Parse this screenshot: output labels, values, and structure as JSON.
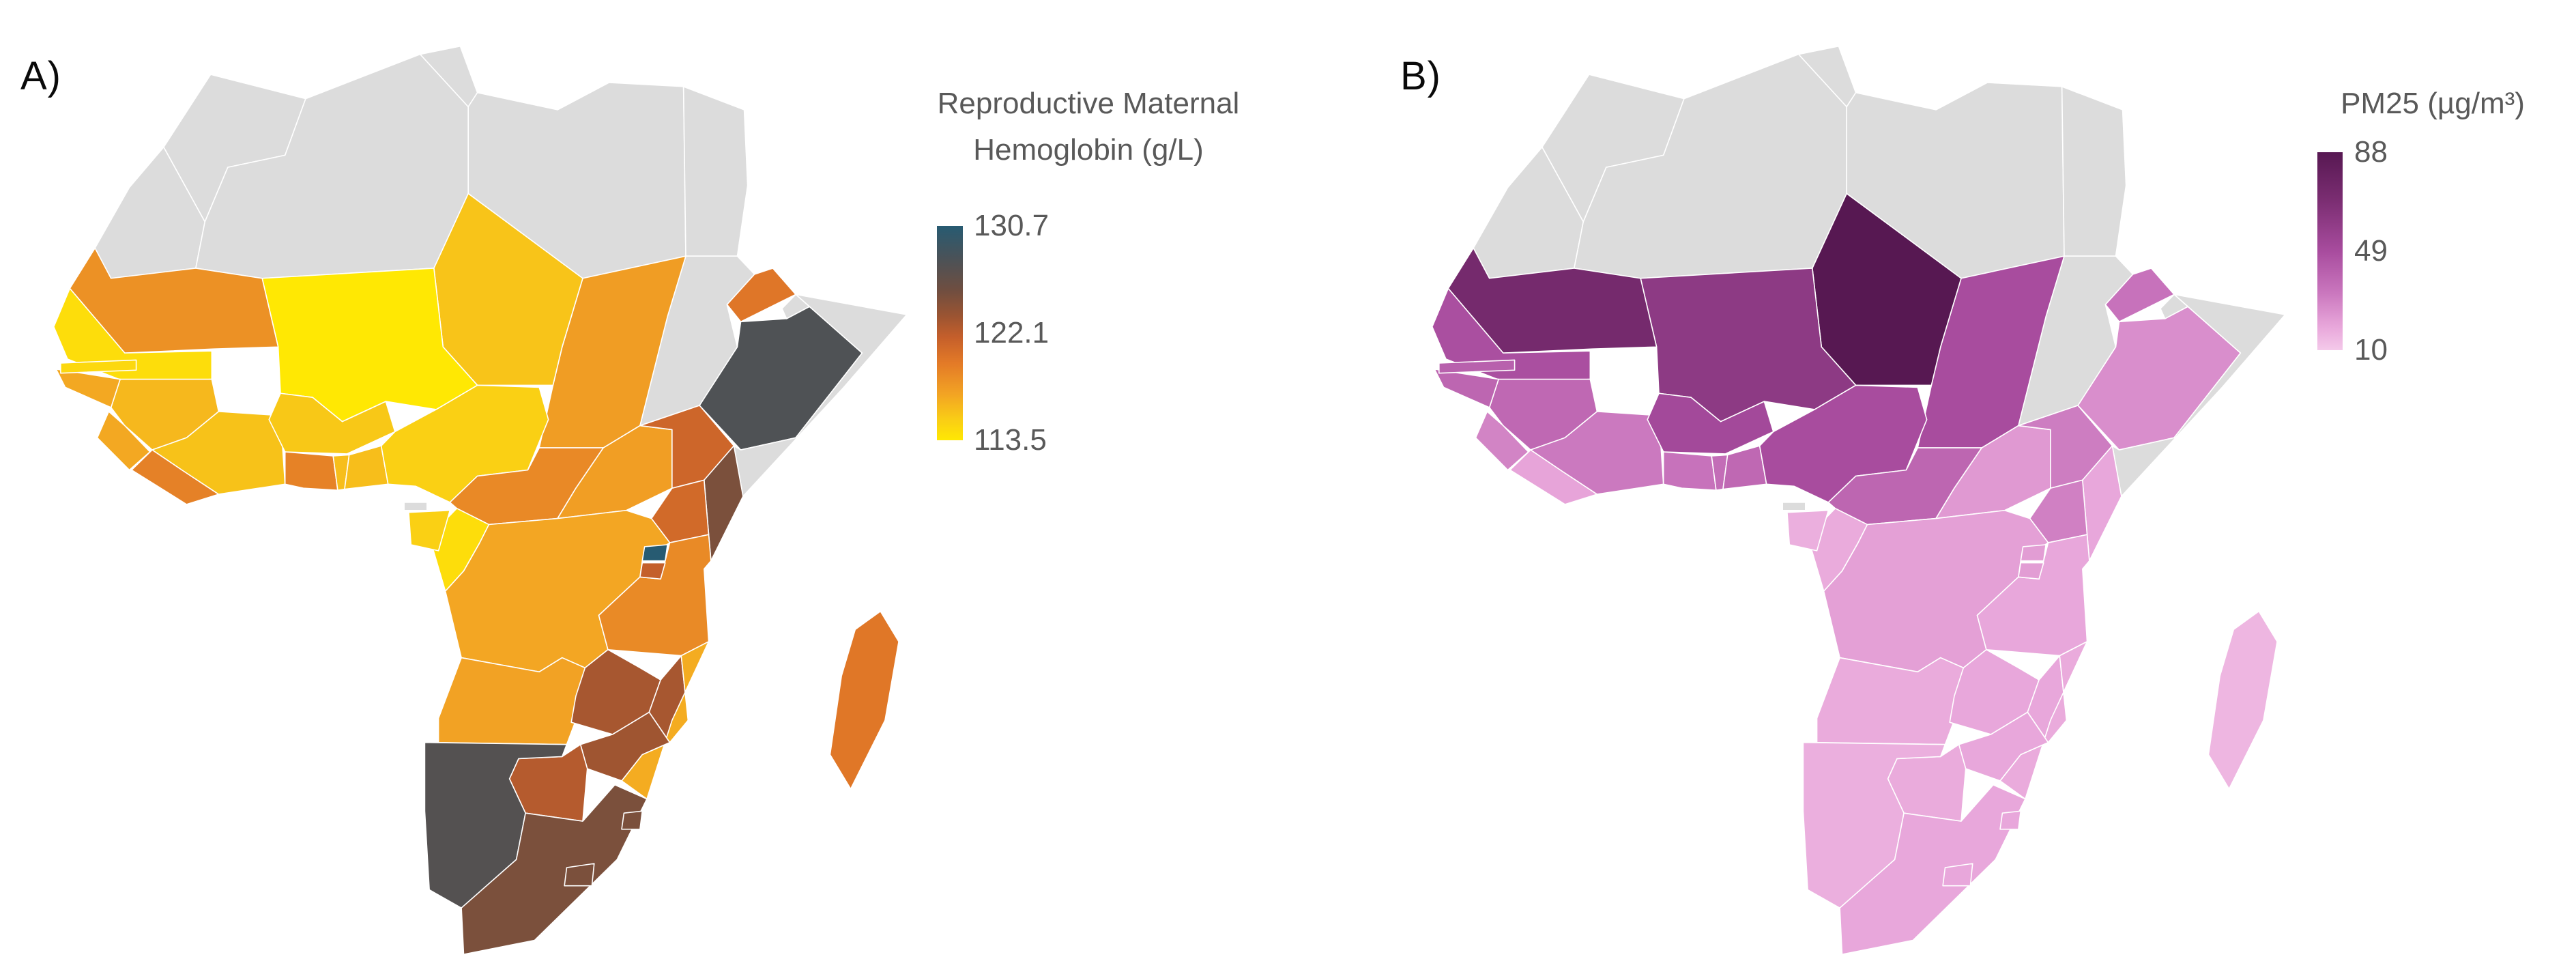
{
  "page": {
    "background": "#FFFFFF",
    "border_color": "#FFFFFF",
    "no_data_color": "#DCDCDC",
    "text_color": "#595959",
    "label_color": "#0A0A0A"
  },
  "panels": [
    {
      "label": "A)",
      "legend_title_line1": "Reproductive Maternal",
      "legend_title_line2": "Hemoglobin (g/L)",
      "colorbar": {
        "ticks": [
          {
            "label": "130.7"
          },
          {
            "label": "122.1"
          },
          {
            "label": "113.5"
          }
        ]
      }
    },
    {
      "label": "B)",
      "legend_title": "PM25 (µg/m³)",
      "colorbar": {
        "ticks": [
          {
            "label": "88"
          },
          {
            "label": "49"
          },
          {
            "label": "10"
          }
        ]
      }
    }
  ],
  "chart_data": [
    {
      "type": "choropleth-map",
      "region": "Africa",
      "title": "Reproductive Maternal Hemoglobin (g/L)",
      "unit": "g/L",
      "scale": {
        "min": 113.5,
        "mid": 122.1,
        "max": 130.7
      },
      "legend_position": "right",
      "no_data_color": "#DCDCDC",
      "border_color": "#FFFFFF",
      "gradient_stops": [
        [
          0.0,
          "#275B72"
        ],
        [
          0.15,
          "#4A5258"
        ],
        [
          0.3,
          "#6F4E40"
        ],
        [
          0.42,
          "#9B5432"
        ],
        [
          0.52,
          "#C55F2B"
        ],
        [
          0.64,
          "#E37A27"
        ],
        [
          0.78,
          "#F2A224"
        ],
        [
          0.9,
          "#F9CC16"
        ],
        [
          1.0,
          "#FFE803"
        ]
      ],
      "values": {
        "Morocco": null,
        "Western Sahara": null,
        "Algeria": null,
        "Tunisia": null,
        "Libya": null,
        "Egypt": null,
        "Sudan": null,
        "Somalia": null,
        "Djibouti": null,
        "Equatorial Guinea": null,
        "Mauritania": 118.3,
        "Mali": 113.5,
        "Niger": 115.6,
        "Chad": 117.6,
        "Senegal": 114.2,
        "Gambia": 114.5,
        "Guinea-Bissau": 117.0,
        "Guinea": 116.2,
        "Sierra Leone": 117.0,
        "Liberia": 119.3,
        "Ivory Coast": 115.7,
        "Burkina Faso": 115.4,
        "Ghana": 119.2,
        "Togo": 115.9,
        "Benin": 115.9,
        "Nigeria": 115.0,
        "Cameroon": 118.8,
        "Central African Republic": 117.5,
        "South Sudan": 121.2,
        "Eritrea": 120.0,
        "Ethiopia": 127.8,
        "Kenya": 125.0,
        "Uganda": 120.9,
        "Rwanda": 130.7,
        "Burundi": 121.8,
        "Tanzania": 118.7,
        "DR Congo": 117.1,
        "Congo": 114.2,
        "Gabon": 115.0,
        "Angola": 117.3,
        "Zambia": 123.0,
        "Malawi": 123.0,
        "Mozambique": 116.8,
        "Zimbabwe": 123.3,
        "Botswana": 122.4,
        "Namibia": 127.4,
        "South Africa": 125.0,
        "Lesotho": 125.0,
        "Eswatini": 125.0,
        "Madagascar": 119.9
      }
    },
    {
      "type": "choropleth-map",
      "region": "Africa",
      "title": "PM25 (µg/m³)",
      "unit": "µg/m³",
      "scale": {
        "min": 10,
        "mid": 49,
        "max": 88
      },
      "legend_position": "right",
      "no_data_color": "#DCDCDC",
      "border_color": "#FFFFFF",
      "gradient_stops": [
        [
          0.0,
          "#571852"
        ],
        [
          0.25,
          "#7C2E73"
        ],
        [
          0.5,
          "#A84C9E"
        ],
        [
          0.7,
          "#C874BC"
        ],
        [
          0.88,
          "#E8A6DA"
        ],
        [
          1.0,
          "#F4C9EA"
        ]
      ],
      "values": {
        "Morocco": null,
        "Western Sahara": null,
        "Algeria": null,
        "Tunisia": null,
        "Libya": null,
        "Egypt": null,
        "Sudan": null,
        "Somalia": null,
        "Djibouti": null,
        "Equatorial Guinea": null,
        "Mauritania": 72,
        "Mali": 61,
        "Niger": 88,
        "Chad": 49,
        "Senegal": 48,
        "Gambia": 41,
        "Guinea-Bissau": 39,
        "Guinea": 38,
        "Sierra Leone": 29,
        "Liberia": 20,
        "Ivory Coast": 32,
        "Burkina Faso": 51,
        "Ghana": 34,
        "Togo": 36,
        "Benin": 38,
        "Nigeria": 49,
        "Cameroon": 39,
        "Central African Republic": 23,
        "South Sudan": 31,
        "Eritrea": 34,
        "Ethiopia": 26,
        "Kenya": 19,
        "Uganda": 30,
        "Rwanda": 22,
        "Burundi": 22,
        "Tanzania": 19,
        "DR Congo": 21,
        "Congo": 18,
        "Gabon": 17,
        "Angola": 18,
        "Zambia": 19,
        "Malawi": 19,
        "Mozambique": 18,
        "Zimbabwe": 19,
        "Botswana": 18,
        "Namibia": 17,
        "South Africa": 19,
        "Lesotho": 19,
        "Eswatini": 19,
        "Madagascar": 15
      }
    }
  ]
}
